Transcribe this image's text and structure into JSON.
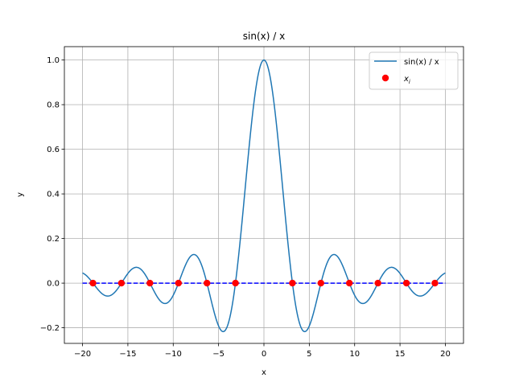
{
  "chart_data": {
    "type": "line",
    "title": "sin(x) / x",
    "xlabel": "x",
    "ylabel": "y",
    "xlim": [
      -22,
      22
    ],
    "ylim": [
      -0.27,
      1.06
    ],
    "grid": true,
    "legend_position": "top-right",
    "x_ticks": [
      -20,
      -15,
      -10,
      -5,
      0,
      5,
      10,
      15,
      20
    ],
    "x_tick_labels": [
      "−20",
      "−15",
      "−10",
      "−5",
      "0",
      "5",
      "10",
      "15",
      "20"
    ],
    "y_ticks": [
      -0.2,
      0.0,
      0.2,
      0.4,
      0.6,
      0.8,
      1.0
    ],
    "y_tick_labels": [
      "−0.2",
      "0.0",
      "0.2",
      "0.4",
      "0.6",
      "0.8",
      "1.0"
    ],
    "series": [
      {
        "name": "sin(x) / x",
        "kind": "line",
        "color": "#1f77b4",
        "function": "sin(x)/x",
        "x_range": [
          -20,
          20
        ],
        "x": [
          -20,
          -17.5,
          -15,
          -14.07,
          -12.5,
          -10,
          -7.73,
          -6.28,
          -4.49,
          -2.5,
          0,
          2.5,
          4.49,
          6.28,
          7.73,
          10,
          12.5,
          14.07,
          15,
          17.5,
          20
        ],
        "y": [
          0.046,
          -0.056,
          0.043,
          0.071,
          -0.005,
          -0.054,
          0.128,
          0.0,
          -0.217,
          0.239,
          1.0,
          0.239,
          -0.217,
          0.0,
          0.128,
          -0.054,
          -0.005,
          0.071,
          0.043,
          -0.056,
          0.046
        ]
      },
      {
        "name": "x_i",
        "kind": "scatter",
        "color": "#ff0000",
        "x": [
          -18.85,
          -15.71,
          -12.57,
          -9.42,
          -6.28,
          -3.14,
          3.14,
          6.28,
          9.42,
          12.57,
          15.71,
          18.85
        ],
        "y": [
          0,
          0,
          0,
          0,
          0,
          0,
          0,
          0,
          0,
          0,
          0,
          0
        ]
      },
      {
        "name": "",
        "kind": "dashed-line",
        "color": "#0000ff",
        "x": [
          -20,
          20
        ],
        "y": [
          0,
          0
        ]
      }
    ],
    "legend": [
      {
        "label": "sin(x) / x",
        "marker": "line",
        "color": "#1f77b4"
      },
      {
        "label": "x",
        "subscript": "i",
        "marker": "dot",
        "color": "#ff0000"
      }
    ]
  }
}
